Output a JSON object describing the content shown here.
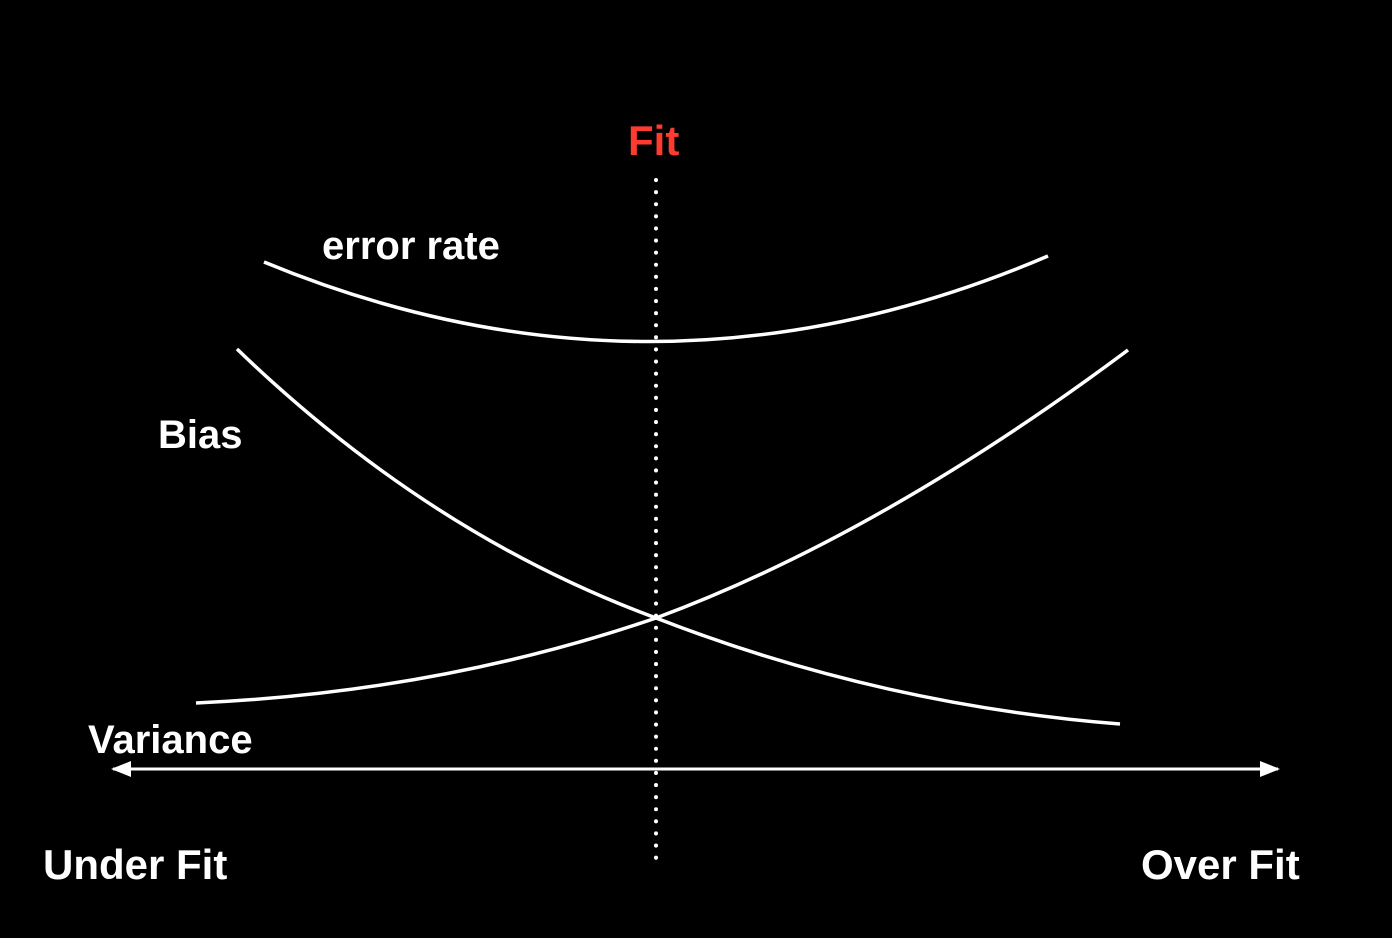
{
  "diagram": {
    "fit_label": "Fit",
    "error_rate_label": "error rate",
    "bias_label": "Bias",
    "variance_label": "Variance",
    "under_fit_label": "Under Fit",
    "over_fit_label": "Over Fit"
  },
  "colors": {
    "background": "#000000",
    "foreground": "#ffffff",
    "fit_accent": "#ff3b30"
  }
}
